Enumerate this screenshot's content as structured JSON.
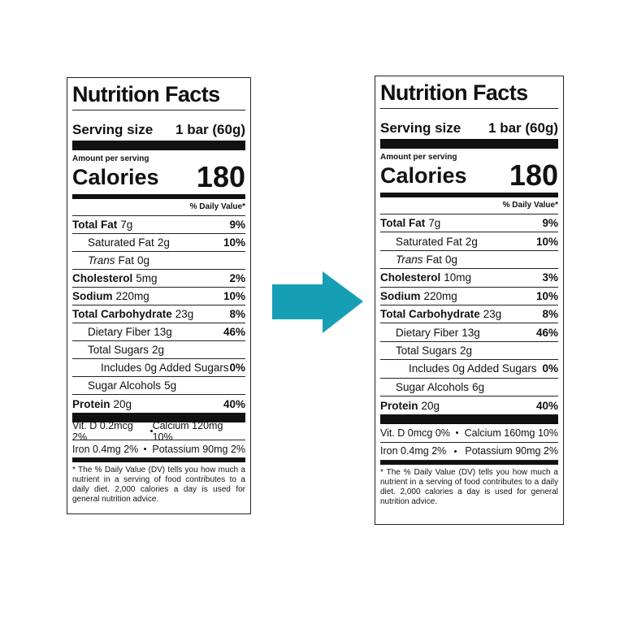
{
  "labels": [
    {
      "title": "Nutrition Facts",
      "serving_label": "Serving size",
      "serving_value": "1 bar (60g)",
      "amount_per_serving": "Amount per serving",
      "calories_label": "Calories",
      "calories": "180",
      "dv_header": "% Daily Value*",
      "rows": [
        {
          "name": "Total Fat",
          "amount": "7g",
          "dv": "9%"
        },
        {
          "name": "Saturated Fat",
          "amount": "2g",
          "dv": "10%"
        },
        {
          "name_italic": "Trans",
          "name": "Fat",
          "amount": "0g"
        },
        {
          "name": "Cholesterol",
          "amount": "5mg",
          "dv": "2%"
        },
        {
          "name": "Sodium",
          "amount": "220mg",
          "dv": "10%"
        },
        {
          "name": "Total Carbohydrate",
          "amount": "23g",
          "dv": "8%"
        },
        {
          "name": "Dietary Fiber",
          "amount": "13g",
          "dv": "46%"
        },
        {
          "name": "Total Sugars",
          "amount": "2g"
        },
        {
          "name": "Includes 0g Added Sugars",
          "dv": "0%"
        },
        {
          "name": "Sugar Alcohols",
          "amount": "5g"
        },
        {
          "name": "Protein",
          "amount": "20g",
          "dv": "40%"
        }
      ],
      "vitamins": [
        [
          "Vit. D 0.2mcg 2%",
          "Calcium 120mg 10%"
        ],
        [
          "Iron 0.4mg 2%",
          "Potassium 90mg 2%"
        ]
      ],
      "footnote": "* The % Daily Value (DV) tells you how much a nutrient in a serving of food contributes to a daily diet. 2,000 calories a day is used for general nutrition advice."
    },
    {
      "title": "Nutrition Facts",
      "serving_label": "Serving size",
      "serving_value": "1 bar (60g)",
      "amount_per_serving": "Amount per serving",
      "calories_label": "Calories",
      "calories": "180",
      "dv_header": "% Daily Value*",
      "rows": [
        {
          "name": "Total Fat",
          "amount": "7g",
          "dv": "9%"
        },
        {
          "name": "Saturated Fat",
          "amount": "2g",
          "dv": "10%"
        },
        {
          "name_italic": "Trans",
          "name": "Fat",
          "amount": "0g"
        },
        {
          "name": "Cholesterol",
          "amount": "10mg",
          "dv": "3%"
        },
        {
          "name": "Sodium",
          "amount": "220mg",
          "dv": "10%"
        },
        {
          "name": "Total Carbohydrate",
          "amount": "23g",
          "dv": "8%"
        },
        {
          "name": "Dietary Fiber",
          "amount": "13g",
          "dv": "46%"
        },
        {
          "name": "Total Sugars",
          "amount": "2g"
        },
        {
          "name": "Includes 0g Added Sugars",
          "dv": "0%"
        },
        {
          "name": "Sugar Alcohols",
          "amount": "6g"
        },
        {
          "name": "Protein",
          "amount": "20g",
          "dv": "40%"
        }
      ],
      "vitamins": [
        [
          "Vit. D 0mcg 0%",
          "Calcium 160mg 10%"
        ],
        [
          "Iron 0.4mg 2%",
          "Potassium 90mg 2%"
        ]
      ],
      "footnote": "* The % Daily Value (DV) tells you how much a nutrient in a serving of food contributes to a daily diet. 2,000 calories a day is used for general nutrition advice."
    }
  ]
}
